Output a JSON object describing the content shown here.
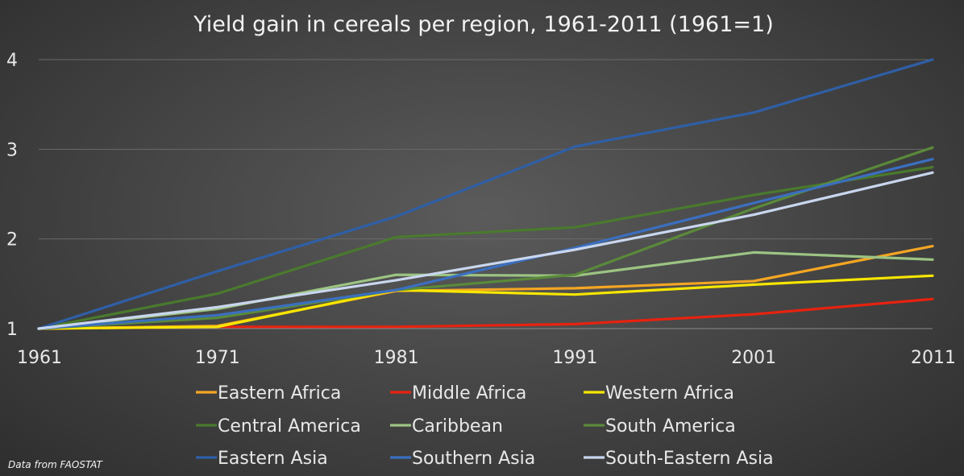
{
  "chart_data": {
    "type": "line",
    "title": "Yield gain in cereals per region, 1961-2011 (1961=1)",
    "x": [
      1961,
      1971,
      1981,
      1991,
      2001,
      2011
    ],
    "x_tick_labels": [
      "1961",
      "1971",
      "1981",
      "1991",
      "2001",
      "2011"
    ],
    "y_ticks": [
      1,
      2,
      3,
      4
    ],
    "y_tick_labels": [
      "1",
      "2",
      "3",
      "4"
    ],
    "ylim": [
      1,
      4
    ],
    "xlim": [
      1961,
      2011
    ],
    "grid": "horizontal",
    "legend_position": "bottom",
    "series": [
      {
        "name": "Eastern Africa",
        "color": "#f5a623",
        "values": [
          1.0,
          1.03,
          1.42,
          1.45,
          1.53,
          1.92
        ]
      },
      {
        "name": "Middle Africa",
        "color": "#e8220f",
        "values": [
          1.0,
          1.02,
          1.02,
          1.05,
          1.16,
          1.33
        ]
      },
      {
        "name": "Western Africa",
        "color": "#f7e600",
        "values": [
          1.0,
          1.02,
          1.43,
          1.38,
          1.49,
          1.59
        ]
      },
      {
        "name": "Central America",
        "color": "#4a7a2e",
        "values": [
          1.0,
          1.39,
          2.02,
          2.13,
          2.49,
          2.8
        ]
      },
      {
        "name": "Caribbean",
        "color": "#9cc483",
        "values": [
          1.0,
          1.22,
          1.6,
          1.59,
          1.85,
          1.77
        ]
      },
      {
        "name": "South America",
        "color": "#5a8a3a",
        "values": [
          1.0,
          1.12,
          1.43,
          1.6,
          2.34,
          3.02
        ]
      },
      {
        "name": "Eastern Asia",
        "color": "#2f5fa6",
        "values": [
          1.0,
          1.64,
          2.25,
          3.03,
          3.41,
          4.0
        ]
      },
      {
        "name": "Southern Asia",
        "color": "#3b6fc0",
        "values": [
          1.0,
          1.15,
          1.43,
          1.9,
          2.4,
          2.89
        ]
      },
      {
        "name": "South-Eastern Asia",
        "color": "#c9d6ee",
        "values": [
          1.0,
          1.24,
          1.54,
          1.88,
          2.27,
          2.74
        ]
      }
    ],
    "gridline_color": "#6a6a6a",
    "axis_color": "#8a8a8a"
  },
  "source_note": "Data from FAOSTAT"
}
